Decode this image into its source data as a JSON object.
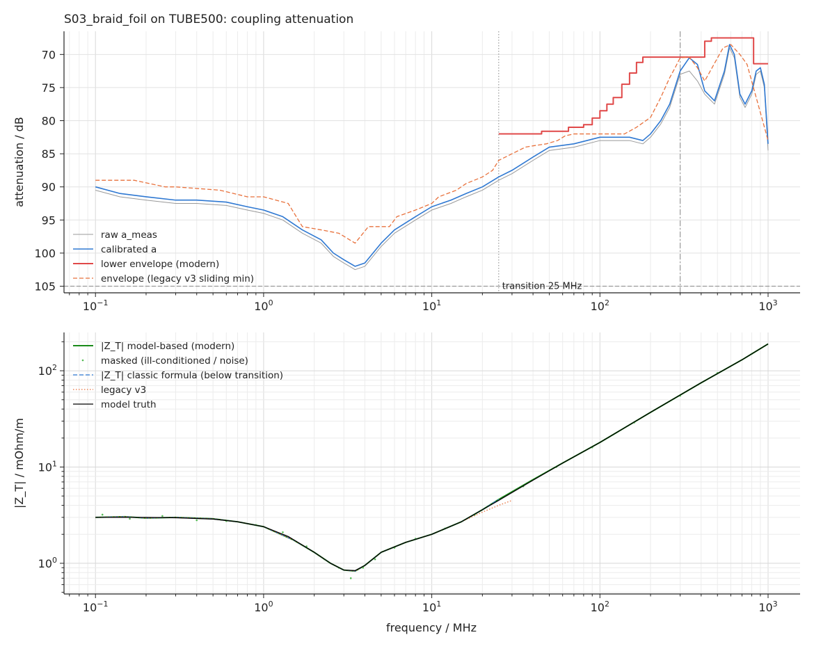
{
  "chart_data": [
    {
      "type": "line",
      "title": "S03_braid_foil on TUBE500: coupling attenuation",
      "xlabel": "",
      "ylabel": "attenuation / dB",
      "xscale": "log",
      "xlim": [
        0.065,
        1550
      ],
      "ylim": [
        106,
        66.5
      ],
      "y_inverted": true,
      "grid": true,
      "legend_position": "lower-left",
      "xticks": [
        {
          "value": 0.1,
          "base": "10",
          "exp": "−1"
        },
        {
          "value": 1,
          "base": "10",
          "exp": "0"
        },
        {
          "value": 10,
          "base": "10",
          "exp": "1"
        },
        {
          "value": 100,
          "base": "10",
          "exp": "2"
        },
        {
          "value": 1000,
          "base": "10",
          "exp": "3"
        }
      ],
      "yticks": [
        70,
        75,
        80,
        85,
        90,
        95,
        100,
        105
      ],
      "annotations": [
        {
          "text": "transition 25 MHz",
          "x": 25,
          "y": 105
        }
      ],
      "reference_lines": [
        {
          "orientation": "vertical",
          "x": 25,
          "style": "dotted",
          "color": "#999999"
        },
        {
          "orientation": "vertical",
          "x": 300,
          "style": "dashdot",
          "color": "#999999"
        },
        {
          "orientation": "horizontal",
          "y": 105,
          "style": "dashed",
          "color": "#999999"
        }
      ],
      "series": [
        {
          "name": "raw a_meas",
          "color": "#999999",
          "style": "solid",
          "width": 1,
          "x": [
            0.1,
            0.14,
            0.2,
            0.3,
            0.4,
            0.6,
            0.8,
            1.0,
            1.3,
            1.7,
            2.2,
            2.6,
            3.0,
            3.5,
            4.0,
            5.0,
            6.0,
            8.0,
            10,
            13,
            16,
            20,
            25,
            30,
            40,
            50,
            70,
            100,
            150,
            180,
            200,
            230,
            260,
            300,
            340,
            380,
            420,
            480,
            550,
            590,
            630,
            680,
            730,
            800,
            850,
            900,
            950,
            1000
          ],
          "y": [
            90.5,
            91.5,
            92.0,
            92.5,
            92.5,
            92.8,
            93.5,
            94.0,
            95.0,
            97.0,
            98.5,
            100.5,
            101.5,
            102.5,
            102.0,
            99.0,
            97.0,
            95.0,
            93.5,
            92.5,
            91.5,
            90.5,
            89.0,
            88.0,
            86.0,
            84.5,
            84.0,
            83.0,
            83.0,
            83.5,
            82.5,
            80.5,
            78.0,
            73.0,
            72.5,
            74.0,
            76.0,
            77.5,
            73.0,
            69.0,
            70.5,
            76.5,
            78.0,
            76.0,
            73.0,
            72.5,
            75.0,
            84.5
          ]
        },
        {
          "name": "calibrated a",
          "color": "#2e78d2",
          "style": "solid",
          "width": 1.6,
          "x": [
            0.1,
            0.14,
            0.2,
            0.3,
            0.4,
            0.6,
            0.8,
            1.0,
            1.3,
            1.7,
            2.2,
            2.6,
            3.0,
            3.5,
            4.0,
            5.0,
            6.0,
            8.0,
            10,
            13,
            16,
            20,
            25,
            30,
            40,
            50,
            70,
            100,
            150,
            180,
            200,
            230,
            260,
            300,
            340,
            380,
            420,
            480,
            550,
            590,
            630,
            680,
            730,
            800,
            850,
            900,
            950,
            1000
          ],
          "y": [
            90.0,
            91.0,
            91.5,
            92.0,
            92.0,
            92.3,
            93.0,
            93.5,
            94.5,
            96.5,
            98.0,
            100.0,
            101.0,
            102.0,
            101.5,
            98.5,
            96.5,
            94.5,
            93.0,
            92.0,
            91.0,
            90.0,
            88.5,
            87.5,
            85.5,
            84.0,
            83.5,
            82.5,
            82.5,
            83.0,
            82.0,
            80.0,
            77.5,
            72.5,
            70.5,
            71.5,
            75.5,
            77.0,
            72.5,
            68.5,
            70.0,
            76.0,
            77.5,
            75.5,
            72.5,
            72.0,
            74.5,
            83.5
          ]
        },
        {
          "name": "lower envelope (modern)",
          "color": "#e04848",
          "style": "solid",
          "width": 2,
          "x": [
            25,
            40,
            45,
            60,
            65,
            80,
            90,
            100,
            110,
            120,
            135,
            150,
            165,
            180,
            300,
            380,
            420,
            460,
            760,
            820,
            1000
          ],
          "y": [
            82.0,
            82.0,
            81.6,
            81.6,
            81.0,
            80.6,
            79.6,
            78.5,
            77.5,
            76.5,
            74.5,
            72.8,
            71.2,
            70.4,
            70.4,
            70.4,
            68.0,
            67.5,
            67.5,
            71.4,
            71.4
          ],
          "x_steps": "post"
        },
        {
          "name": "envelope (legacy v3 sliding min)",
          "color": "#e8713c",
          "style": "dashed",
          "width": 1.3,
          "x": [
            0.1,
            0.17,
            0.26,
            0.3,
            0.55,
            0.8,
            1.0,
            1.4,
            1.7,
            2.2,
            2.8,
            3.5,
            4.2,
            5.6,
            6.2,
            8.0,
            10,
            11,
            14,
            16,
            20,
            23,
            25,
            30,
            36,
            40,
            48,
            56,
            62,
            70,
            100,
            140,
            165,
            200,
            230,
            260,
            280,
            300,
            340,
            380,
            420,
            540,
            600,
            680,
            750,
            1000
          ],
          "y": [
            89.0,
            89.0,
            90.0,
            90.0,
            90.5,
            91.5,
            91.5,
            92.5,
            96.0,
            96.5,
            97.0,
            98.5,
            96.0,
            96.0,
            94.5,
            93.5,
            92.5,
            91.5,
            90.5,
            89.5,
            88.5,
            87.5,
            86.0,
            85.0,
            84.0,
            83.8,
            83.5,
            83.0,
            82.3,
            82.0,
            82.0,
            82.0,
            81.0,
            79.5,
            76.5,
            73.5,
            72.0,
            70.5,
            70.4,
            72.0,
            74.0,
            69.0,
            68.5,
            70.0,
            71.5,
            83.0
          ]
        }
      ]
    },
    {
      "type": "line",
      "title": "",
      "xlabel": "frequency / MHz",
      "ylabel": "|Z_T| / mOhm/m",
      "xscale": "log",
      "yscale": "log",
      "xlim": [
        0.065,
        1550
      ],
      "ylim": [
        0.48,
        250
      ],
      "grid": true,
      "legend_position": "top-left",
      "xticks": [
        {
          "value": 0.1,
          "base": "10",
          "exp": "−1"
        },
        {
          "value": 1,
          "base": "10",
          "exp": "0"
        },
        {
          "value": 10,
          "base": "10",
          "exp": "1"
        },
        {
          "value": 100,
          "base": "10",
          "exp": "2"
        },
        {
          "value": 1000,
          "base": "10",
          "exp": "3"
        }
      ],
      "yticks": [
        {
          "value": 1,
          "base": "10",
          "exp": "0"
        },
        {
          "value": 10,
          "base": "10",
          "exp": "1"
        },
        {
          "value": 100,
          "base": "10",
          "exp": "2"
        }
      ],
      "series": [
        {
          "name": "|Z_T| model-based (modern)",
          "color": "#1a8a1a",
          "style": "solid",
          "width": 2,
          "x": [
            0.1,
            0.15,
            0.2,
            0.3,
            0.5,
            0.7,
            1.0,
            1.5,
            2.0,
            2.5,
            3.0,
            3.5,
            4.0,
            5.0,
            7.0,
            10,
            15,
            20,
            25,
            40,
            60,
            100,
            200,
            400,
            700,
            1000
          ],
          "y": [
            3.0,
            3.05,
            2.95,
            3.0,
            2.9,
            2.7,
            2.4,
            1.75,
            1.3,
            1.0,
            0.85,
            0.83,
            0.95,
            1.3,
            1.65,
            2.0,
            2.7,
            3.6,
            4.6,
            7.4,
            11,
            18,
            37,
            75,
            130,
            190
          ]
        },
        {
          "name": "masked (ill-conditioned / noise)",
          "color": "#55bb55",
          "style": "points",
          "width": 1,
          "x": [
            0.11,
            0.16,
            0.25,
            0.4,
            0.6,
            0.9,
            1.3,
            1.8,
            2.3,
            2.8,
            3.3,
            3.9,
            4.6,
            6.0,
            8.0,
            12,
            18,
            25,
            35,
            55,
            90,
            160,
            300,
            500,
            800
          ],
          "y": [
            3.2,
            2.9,
            3.1,
            2.8,
            2.75,
            2.5,
            2.1,
            1.5,
            1.1,
            0.9,
            0.7,
            0.9,
            1.1,
            1.45,
            1.8,
            2.3,
            3.2,
            4.6,
            6.3,
            10,
            16,
            29,
            55,
            95,
            150
          ]
        },
        {
          "name": "|Z_T| classic formula (below transition)",
          "color": "#2e78d2",
          "style": "dashed",
          "width": 1.3,
          "x": [
            0.1,
            0.15,
            0.2,
            0.3,
            0.5,
            0.7,
            1.0,
            1.5,
            2.0,
            2.5,
            3.0,
            3.5,
            4.0,
            5.0,
            7.0,
            10,
            15,
            20,
            25
          ],
          "y": [
            3.0,
            3.05,
            2.95,
            3.0,
            2.9,
            2.7,
            2.4,
            1.75,
            1.3,
            1.0,
            0.85,
            0.83,
            0.95,
            1.3,
            1.65,
            2.0,
            2.7,
            3.6,
            4.6
          ]
        },
        {
          "name": "legacy v3",
          "color": "#e8713c",
          "style": "dotted",
          "width": 1.3,
          "x": [
            0.1,
            0.15,
            0.2,
            0.3,
            0.5,
            0.7,
            1.0,
            1.5,
            2.0,
            2.5,
            3.0,
            3.5,
            4.0,
            5.0,
            7.0,
            10,
            15,
            20,
            25,
            30
          ],
          "y": [
            3.0,
            3.05,
            2.95,
            3.0,
            2.9,
            2.7,
            2.4,
            1.75,
            1.3,
            1.0,
            0.85,
            0.83,
            0.95,
            1.3,
            1.65,
            2.0,
            2.7,
            3.4,
            4.0,
            4.5
          ]
        },
        {
          "name": "model truth",
          "color": "#000000",
          "style": "solid",
          "width": 1.3,
          "x": [
            0.1,
            0.2,
            0.3,
            0.5,
            0.7,
            1.0,
            1.4,
            2.0,
            2.5,
            3.0,
            3.5,
            4.0,
            5.0,
            7.0,
            10,
            15,
            25,
            40,
            60,
            100,
            200,
            400,
            700,
            1000
          ],
          "y": [
            3.0,
            3.0,
            2.97,
            2.88,
            2.7,
            2.4,
            1.9,
            1.3,
            1.0,
            0.85,
            0.84,
            0.95,
            1.3,
            1.65,
            2.0,
            2.7,
            4.5,
            7.3,
            11,
            18,
            37,
            75,
            130,
            190
          ]
        }
      ]
    }
  ]
}
